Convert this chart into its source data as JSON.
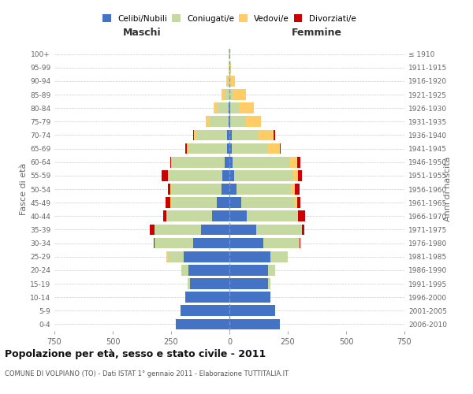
{
  "age_groups": [
    "0-4",
    "5-9",
    "10-14",
    "15-19",
    "20-24",
    "25-29",
    "30-34",
    "35-39",
    "40-44",
    "45-49",
    "50-54",
    "55-59",
    "60-64",
    "65-69",
    "70-74",
    "75-79",
    "80-84",
    "85-89",
    "90-94",
    "95-99",
    "100+"
  ],
  "birth_years": [
    "2006-2010",
    "2001-2005",
    "1996-2000",
    "1991-1995",
    "1986-1990",
    "1981-1985",
    "1976-1980",
    "1971-1975",
    "1966-1970",
    "1961-1965",
    "1956-1960",
    "1951-1955",
    "1946-1950",
    "1941-1945",
    "1936-1940",
    "1931-1935",
    "1926-1930",
    "1921-1925",
    "1916-1920",
    "1911-1915",
    "≤ 1910"
  ],
  "males": {
    "celibi": [
      230,
      210,
      190,
      170,
      175,
      195,
      155,
      120,
      75,
      55,
      35,
      30,
      20,
      10,
      10,
      5,
      5,
      0,
      0,
      0,
      0
    ],
    "coniugati": [
      0,
      0,
      0,
      10,
      30,
      70,
      165,
      200,
      195,
      195,
      215,
      230,
      225,
      165,
      130,
      80,
      45,
      20,
      8,
      3,
      2
    ],
    "vedovi": [
      0,
      0,
      0,
      0,
      0,
      5,
      0,
      0,
      0,
      2,
      3,
      5,
      5,
      8,
      12,
      15,
      18,
      15,
      5,
      2,
      0
    ],
    "divorziati": [
      0,
      0,
      0,
      0,
      0,
      0,
      5,
      20,
      15,
      20,
      10,
      25,
      5,
      5,
      5,
      0,
      0,
      0,
      0,
      0,
      0
    ]
  },
  "females": {
    "nubili": [
      215,
      195,
      175,
      165,
      165,
      175,
      145,
      115,
      75,
      50,
      30,
      20,
      15,
      10,
      10,
      5,
      5,
      0,
      0,
      0,
      0
    ],
    "coniugate": [
      0,
      0,
      0,
      10,
      30,
      75,
      155,
      195,
      215,
      230,
      235,
      255,
      245,
      155,
      115,
      65,
      35,
      15,
      5,
      3,
      2
    ],
    "vedove": [
      0,
      0,
      0,
      0,
      0,
      0,
      0,
      0,
      5,
      10,
      15,
      20,
      30,
      50,
      65,
      65,
      65,
      55,
      20,
      5,
      0
    ],
    "divorziate": [
      0,
      0,
      0,
      0,
      0,
      0,
      5,
      10,
      30,
      15,
      20,
      15,
      15,
      5,
      5,
      0,
      0,
      0,
      0,
      0,
      0
    ]
  },
  "color_celibi": "#4472C4",
  "color_coniugati": "#C5D9A0",
  "color_vedovi": "#FFCC66",
  "color_divorziati": "#CC0000",
  "xlim": 750,
  "title": "Popolazione per età, sesso e stato civile - 2011",
  "subtitle": "COMUNE DI VOLPIANO (TO) - Dati ISTAT 1° gennaio 2011 - Elaborazione TUTTITALIA.IT",
  "ylabel_left": "Fasce di età",
  "ylabel_right": "Anni di nascita",
  "xlabel_left": "Maschi",
  "xlabel_right": "Femmine",
  "bg_color": "#ffffff",
  "grid_color": "#cccccc",
  "bar_height": 0.8
}
